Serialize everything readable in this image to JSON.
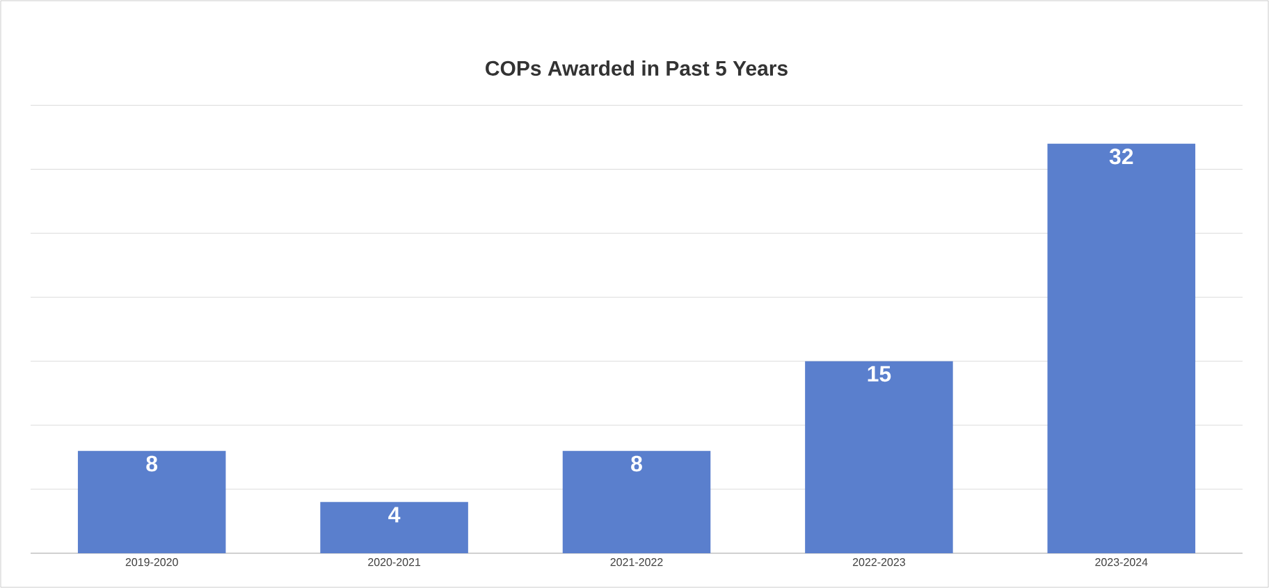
{
  "chart_data": {
    "type": "bar",
    "title": "COPs Awarded in Past 5 Years",
    "categories": [
      "2019-2020",
      "2020-2021",
      "2021-2022",
      "2022-2023",
      "2023-2024"
    ],
    "values": [
      8,
      4,
      8,
      15,
      32
    ],
    "color": "#5a7fcd",
    "data_labels": true,
    "grid": "y",
    "tick_labels": "x"
  }
}
